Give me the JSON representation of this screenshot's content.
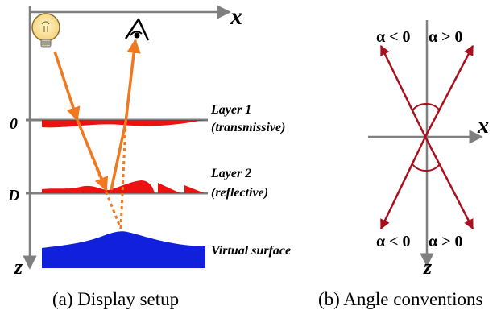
{
  "panel_a": {
    "axis_x_label": "x",
    "axis_z_label": "z",
    "tick_zero_label": "0",
    "tick_d_label": "D",
    "layer1": {
      "label_line1": "Layer 1",
      "label_line2": "(transmissive)"
    },
    "layer2": {
      "label_line1": "Layer 2",
      "label_line2": "(reflective)"
    },
    "virtual_surface_label": "Virtual surface",
    "caption": "(a) Display setup"
  },
  "panel_b": {
    "axis_x_label": "x",
    "axis_z_label": "z",
    "top_left_label": "α < 0",
    "top_right_label": "α > 0",
    "bottom_left_label": "α < 0",
    "bottom_right_label": "α > 0",
    "caption": "(b) Angle conventions"
  },
  "colors": {
    "axis": "#7f7f7f",
    "layer": "#ee1111",
    "ray": "#f07820",
    "surface": "#1020dd",
    "angle_line": "#aa0f1e"
  },
  "icons": {
    "light_source": "light-bulb-icon",
    "viewer": "eye-icon"
  }
}
